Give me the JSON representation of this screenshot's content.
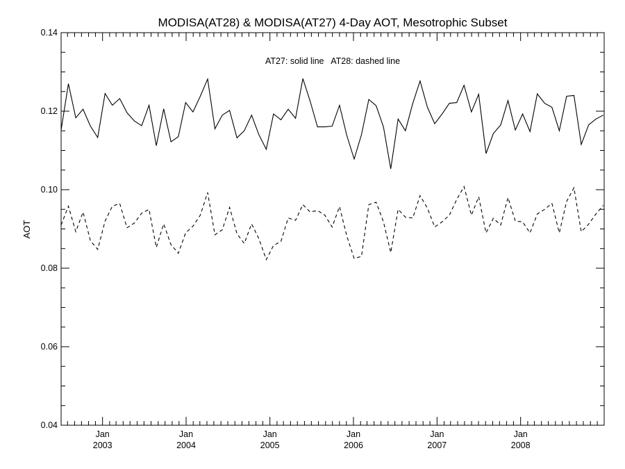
{
  "chart_data": {
    "type": "line",
    "title": "MODISA(AT28) & MODISA(AT27) 4-Day AOT, Mesotrophic Subset",
    "xlabel": "",
    "ylabel": "AOT",
    "annotation": "AT27: solid line   AT28: dashed line",
    "ylim": [
      0.04,
      0.14
    ],
    "xlim": [
      "2002-07-04",
      "2008-12-31"
    ],
    "yticks": [
      "0.04",
      "0.06",
      "0.08",
      "0.10",
      "0.12",
      "0.14"
    ],
    "xticks": [
      {
        "date": "2003-01-01",
        "month": "Jan",
        "year": "2003"
      },
      {
        "date": "2004-01-01",
        "month": "Jan",
        "year": "2004"
      },
      {
        "date": "2005-01-01",
        "month": "Jan",
        "year": "2005"
      },
      {
        "date": "2006-01-01",
        "month": "Jan",
        "year": "2006"
      },
      {
        "date": "2007-01-01",
        "month": "Jan",
        "year": "2007"
      },
      {
        "date": "2008-01-01",
        "month": "Jan",
        "year": "2008"
      }
    ],
    "grid": false,
    "x": [
      "2002-07-04",
      "2002-08-05",
      "2002-09-06",
      "2002-10-08",
      "2002-11-09",
      "2002-12-11",
      "2003-01-12",
      "2003-02-13",
      "2003-03-17",
      "2003-04-18",
      "2003-05-20",
      "2003-06-21",
      "2003-07-23",
      "2003-08-24",
      "2003-09-25",
      "2003-10-27",
      "2003-11-28",
      "2003-12-30",
      "2004-01-31",
      "2004-03-03",
      "2004-04-04",
      "2004-05-06",
      "2004-06-07",
      "2004-07-09",
      "2004-08-10",
      "2004-09-11",
      "2004-10-13",
      "2004-11-14",
      "2004-12-16",
      "2005-01-17",
      "2005-02-18",
      "2005-03-22",
      "2005-04-23",
      "2005-05-25",
      "2005-06-26",
      "2005-07-28",
      "2005-08-29",
      "2005-09-30",
      "2005-11-01",
      "2005-12-03",
      "2006-01-04",
      "2006-02-05",
      "2006-03-09",
      "2006-04-10",
      "2006-05-12",
      "2006-06-13",
      "2006-07-15",
      "2006-08-16",
      "2006-09-17",
      "2006-10-19",
      "2006-11-20",
      "2006-12-22",
      "2007-01-23",
      "2007-02-24",
      "2007-03-28",
      "2007-04-29",
      "2007-05-31",
      "2007-07-02",
      "2007-08-03",
      "2007-09-04",
      "2007-10-06",
      "2007-11-07",
      "2007-12-09",
      "2008-01-10",
      "2008-02-11",
      "2008-03-14",
      "2008-04-15",
      "2008-05-17",
      "2008-06-18",
      "2008-07-20",
      "2008-08-21",
      "2008-09-22",
      "2008-10-24",
      "2008-11-25",
      "2008-12-27"
    ],
    "series": [
      {
        "name": "AT27",
        "style": "solid",
        "color": "#000000",
        "values": [
          0.1152,
          0.127,
          0.1183,
          0.1205,
          0.1162,
          0.1133,
          0.1245,
          0.1215,
          0.1232,
          0.1196,
          0.1175,
          0.1163,
          0.1215,
          0.1112,
          0.1206,
          0.1122,
          0.1135,
          0.1222,
          0.1198,
          0.1238,
          0.1282,
          0.1155,
          0.119,
          0.1202,
          0.1132,
          0.115,
          0.119,
          0.114,
          0.1103,
          0.1193,
          0.1178,
          0.1205,
          0.1182,
          0.1283,
          0.1225,
          0.116,
          0.116,
          0.1162,
          0.1215,
          0.1138,
          0.1078,
          0.114,
          0.123,
          0.1214,
          0.116,
          0.1053,
          0.118,
          0.115,
          0.122,
          0.1277,
          0.121,
          0.1168,
          0.1193,
          0.122,
          0.1222,
          0.1266,
          0.1198,
          0.1243,
          0.1092,
          0.1143,
          0.1165,
          0.1227,
          0.1152,
          0.1193,
          0.1148,
          0.1244,
          0.122,
          0.121,
          0.115,
          0.1238,
          0.124,
          0.1115,
          0.1165,
          0.118,
          0.119
        ]
      },
      {
        "name": "AT28",
        "style": "dashed",
        "color": "#000000",
        "values": [
          0.091,
          0.0958,
          0.0893,
          0.0943,
          0.087,
          0.0848,
          0.092,
          0.0958,
          0.0965,
          0.0903,
          0.0915,
          0.094,
          0.095,
          0.0853,
          0.0913,
          0.086,
          0.0838,
          0.089,
          0.0907,
          0.0935,
          0.0993,
          0.0885,
          0.0898,
          0.0955,
          0.0888,
          0.0863,
          0.0913,
          0.0875,
          0.0822,
          0.0858,
          0.0868,
          0.0928,
          0.0922,
          0.0962,
          0.0943,
          0.0947,
          0.0935,
          0.0905,
          0.0957,
          0.0882,
          0.0825,
          0.083,
          0.0962,
          0.0968,
          0.0918,
          0.084,
          0.095,
          0.093,
          0.0928,
          0.0985,
          0.0953,
          0.0905,
          0.0918,
          0.0935,
          0.0975,
          0.1008,
          0.0935,
          0.0982,
          0.089,
          0.0927,
          0.091,
          0.098,
          0.092,
          0.0918,
          0.089,
          0.0938,
          0.095,
          0.0965,
          0.089,
          0.097,
          0.1005,
          0.0893,
          0.0912,
          0.0938,
          0.096
        ]
      }
    ]
  }
}
